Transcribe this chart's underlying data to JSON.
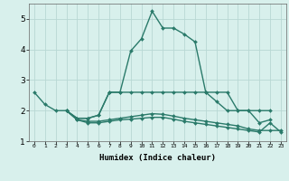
{
  "xlabel": "Humidex (Indice chaleur)",
  "x_values": [
    0,
    1,
    2,
    3,
    4,
    5,
    6,
    7,
    8,
    9,
    10,
    11,
    12,
    13,
    14,
    15,
    16,
    17,
    18,
    19,
    20,
    21,
    22,
    23
  ],
  "line1_y": [
    2.6,
    2.2,
    2.0,
    2.0,
    1.75,
    1.75,
    1.85,
    2.6,
    2.6,
    3.95,
    4.35,
    5.25,
    4.7,
    4.7,
    4.5,
    4.25,
    2.6,
    2.3,
    2.0,
    2.0,
    2.0,
    1.6,
    1.7,
    null
  ],
  "line2_y": [
    null,
    null,
    null,
    2.0,
    1.75,
    1.75,
    1.85,
    2.6,
    2.6,
    2.6,
    2.6,
    2.6,
    2.6,
    2.6,
    2.6,
    2.6,
    2.6,
    2.6,
    2.6,
    2.0,
    2.0,
    2.0,
    2.0,
    null
  ],
  "line3_y": [
    null,
    null,
    null,
    2.0,
    1.7,
    1.65,
    1.65,
    1.7,
    1.75,
    1.8,
    1.85,
    1.9,
    1.88,
    1.82,
    1.75,
    1.7,
    1.65,
    1.6,
    1.55,
    1.5,
    1.4,
    1.35,
    1.35,
    1.35
  ],
  "line4_y": [
    null,
    null,
    null,
    2.0,
    1.7,
    1.6,
    1.6,
    1.65,
    1.7,
    1.72,
    1.75,
    1.78,
    1.78,
    1.72,
    1.65,
    1.6,
    1.55,
    1.5,
    1.45,
    1.4,
    1.35,
    1.3,
    1.6,
    1.3
  ],
  "ylim": [
    1.0,
    5.5
  ],
  "yticks": [
    1,
    2,
    3,
    4,
    5
  ],
  "xticks": [
    0,
    1,
    2,
    3,
    4,
    5,
    6,
    7,
    8,
    9,
    10,
    11,
    12,
    13,
    14,
    15,
    16,
    17,
    18,
    19,
    20,
    21,
    22,
    23
  ],
  "line_color": "#2a7a6a",
  "bg_color": "#d8f0ec",
  "grid_color": "#b8d8d4",
  "marker": "D",
  "marker_size": 2.0,
  "line_width": 1.0
}
